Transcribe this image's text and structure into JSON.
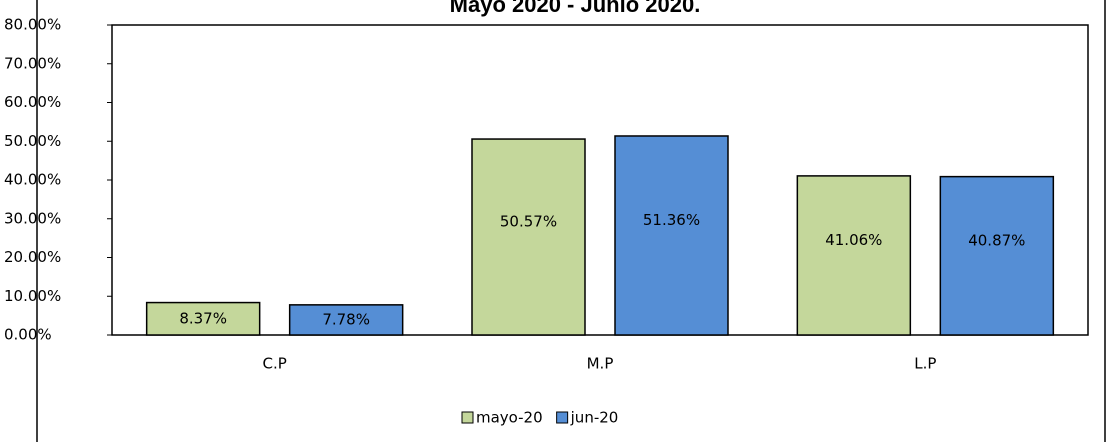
{
  "chart_data": {
    "type": "bar",
    "title": "Mayo 2020 - Junio 2020.",
    "categories": [
      "C.P",
      "M.P",
      "L.P"
    ],
    "series": [
      {
        "name": "mayo-20",
        "color": "#c4d79b",
        "values": [
          8.37,
          50.57,
          41.06
        ],
        "value_labels": [
          "8.37%",
          "50.57%",
          "41.06%"
        ]
      },
      {
        "name": "jun-20",
        "color": "#558ed5",
        "values": [
          7.78,
          51.36,
          40.87
        ],
        "value_labels": [
          "7.78%",
          "51.36%",
          "40.87%"
        ]
      }
    ],
    "ylim": [
      0,
      80
    ],
    "yticks": [
      {
        "value": 0,
        "label": "0.00%"
      },
      {
        "value": 10,
        "label": "10.00%"
      },
      {
        "value": 20,
        "label": "20.00%"
      },
      {
        "value": 30,
        "label": "30.00%"
      },
      {
        "value": 40,
        "label": "40.00%"
      },
      {
        "value": 50,
        "label": "50.00%"
      },
      {
        "value": 60,
        "label": "60.00%"
      },
      {
        "value": 70,
        "label": "70.00%"
      },
      {
        "value": 80,
        "label": "80.00%"
      }
    ],
    "legend": "bottom"
  }
}
